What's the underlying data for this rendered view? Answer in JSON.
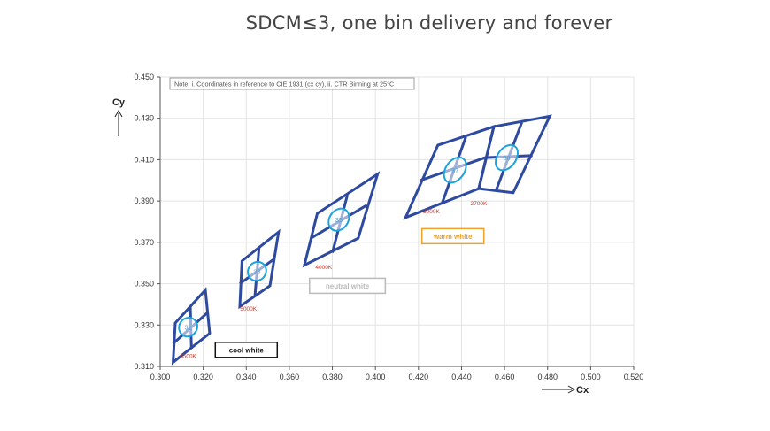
{
  "title": "SDCM≤3, one bin delivery and forever",
  "chart_data": {
    "type": "scatter",
    "xlabel": "Cx",
    "ylabel": "Cy",
    "xlim": [
      0.3,
      0.52
    ],
    "ylim": [
      0.31,
      0.45
    ],
    "xticks": [
      "0.300",
      "0.320",
      "0.340",
      "0.360",
      "0.380",
      "0.400",
      "0.420",
      "0.440",
      "0.460",
      "0.480",
      "0.500",
      "0.520"
    ],
    "yticks": [
      "0.310",
      "0.330",
      "0.350",
      "0.370",
      "0.390",
      "0.410",
      "0.430",
      "0.450"
    ],
    "grid": true,
    "note": "Note: i. Coordinates in reference to CIE 1931 (cx cy), ii. CTR Binning at 25°C",
    "quads": [
      {
        "name": "6500K",
        "corners": [
          [
            0.307,
            0.331
          ],
          [
            0.321,
            0.347
          ],
          [
            0.323,
            0.326
          ],
          [
            0.306,
            0.312
          ]
        ],
        "mid": [
          [
            0.314,
            0.339
          ],
          [
            0.3145,
            0.319
          ],
          [
            0.306,
            0.321
          ],
          [
            0.322,
            0.336
          ]
        ]
      },
      {
        "name": "5000K",
        "corners": [
          [
            0.338,
            0.361
          ],
          [
            0.355,
            0.375
          ],
          [
            0.351,
            0.349
          ],
          [
            0.337,
            0.339
          ]
        ],
        "mid": [
          [
            0.346,
            0.368
          ],
          [
            0.344,
            0.344
          ],
          [
            0.337,
            0.35
          ],
          [
            0.353,
            0.362
          ]
        ]
      },
      {
        "name": "4000K",
        "corners": [
          [
            0.373,
            0.384
          ],
          [
            0.401,
            0.403
          ],
          [
            0.392,
            0.372
          ],
          [
            0.367,
            0.359
          ]
        ],
        "mid": [
          [
            0.387,
            0.393
          ],
          [
            0.38,
            0.365
          ],
          [
            0.37,
            0.372
          ],
          [
            0.396,
            0.388
          ]
        ]
      },
      {
        "name": "3000K",
        "corners": [
          [
            0.429,
            0.417
          ],
          [
            0.455,
            0.426
          ],
          [
            0.448,
            0.396
          ],
          [
            0.414,
            0.382
          ]
        ],
        "mid": [
          [
            0.442,
            0.421
          ],
          [
            0.431,
            0.389
          ],
          [
            0.421,
            0.4
          ],
          [
            0.451,
            0.411
          ]
        ]
      },
      {
        "name": "2700K",
        "corners": [
          [
            0.455,
            0.426
          ],
          [
            0.481,
            0.431
          ],
          [
            0.464,
            0.394
          ],
          [
            0.448,
            0.396
          ]
        ],
        "mid": [
          [
            0.468,
            0.428
          ],
          [
            0.456,
            0.395
          ],
          [
            0.451,
            0.411
          ],
          [
            0.473,
            0.412
          ]
        ]
      }
    ],
    "bins": [
      {
        "label": "31",
        "center": [
          0.313,
          0.329
        ],
        "rx": 0.0045,
        "ry": 0.0043,
        "rot": -55
      },
      {
        "label": "33",
        "center": [
          0.345,
          0.356
        ],
        "rx": 0.0045,
        "ry": 0.0043,
        "rot": -55
      },
      {
        "label": "35",
        "center": [
          0.383,
          0.381
        ],
        "rx": 0.0055,
        "ry": 0.0045,
        "rot": -55
      },
      {
        "label": "37",
        "center": [
          0.437,
          0.405
        ],
        "rx": 0.0065,
        "ry": 0.0045,
        "rot": -55
      },
      {
        "label": "38",
        "center": [
          0.461,
          0.411
        ],
        "rx": 0.0065,
        "ry": 0.0045,
        "rot": -55
      }
    ],
    "cct_labels": [
      {
        "text": "6500K",
        "at": [
          0.313,
          0.314
        ]
      },
      {
        "text": "5000K",
        "at": [
          0.341,
          0.337
        ]
      },
      {
        "text": "4000K",
        "at": [
          0.376,
          0.357
        ]
      },
      {
        "text": "3000K",
        "at": [
          0.426,
          0.384
        ]
      },
      {
        "text": "2700K",
        "at": [
          0.448,
          0.388
        ]
      }
    ],
    "group_labels": [
      {
        "text": "cool white",
        "at": [
          0.34,
          0.318
        ],
        "color": "#111111"
      },
      {
        "text": "neutral white",
        "at": [
          0.387,
          0.349
        ],
        "color": "#bbbbbb"
      },
      {
        "text": "warm white",
        "at": [
          0.436,
          0.373
        ],
        "color": "#f0a12a"
      }
    ],
    "colors": {
      "quad": "#2d4aa0",
      "bin": "#1aa3dc",
      "grid": "#e3e3e3",
      "cct": "#c0392b"
    }
  }
}
